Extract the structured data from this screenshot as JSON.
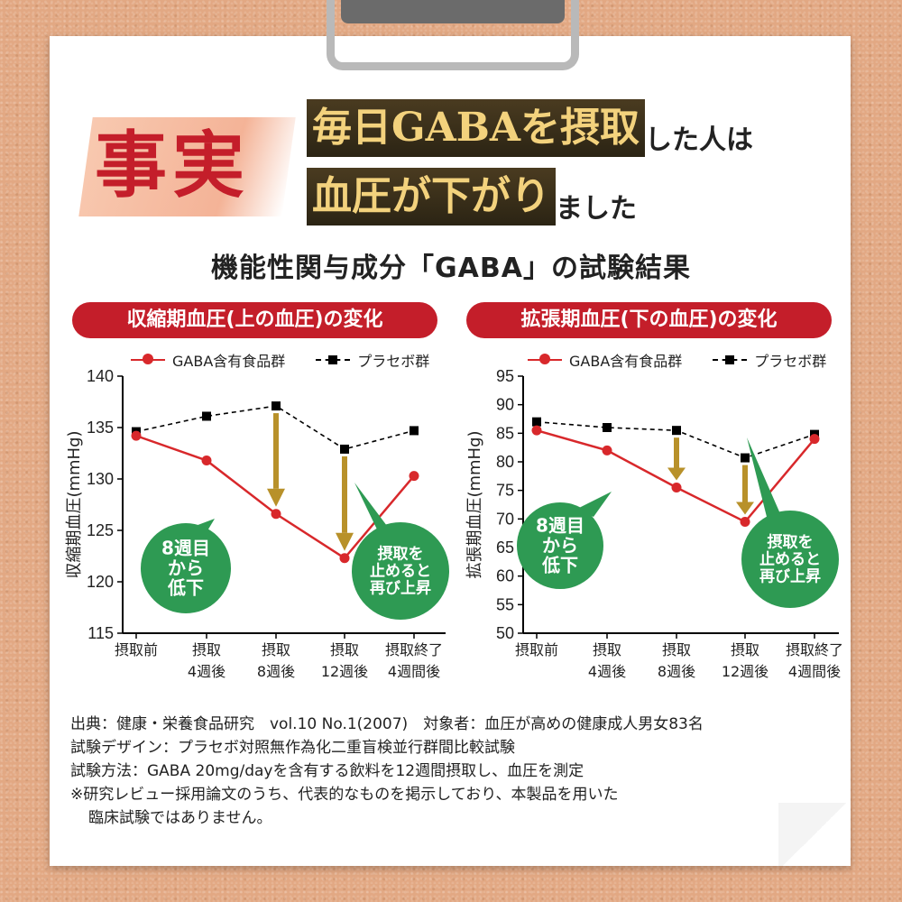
{
  "header": {
    "fact": "事実",
    "line1_box": "毎日GABAを摂取",
    "line1_rest": "した人は",
    "line2_box": "血圧が下がり",
    "line2_rest": "ました"
  },
  "subtitle": "機能性関与成分「GABA」の試験結果",
  "panels": {
    "left_title": "収縮期血圧(上の血圧)の変化",
    "right_title": "拡張期血圧(下の血圧)の変化"
  },
  "legend": {
    "gaba": "GABA含有食品群",
    "placebo": "プラセボ群"
  },
  "colors": {
    "red": "#d8282b",
    "green": "#2e9a53",
    "gold": "#b8912a",
    "accent": "#c41e2a"
  },
  "chart_data": [
    {
      "type": "line",
      "title": "収縮期血圧(上の血圧)の変化",
      "ylabel": "収縮期血圧(mmHg)",
      "categories": [
        "摂取前",
        "摂取\n4週後",
        "摂取\n8週後",
        "摂取\n12週後",
        "摂取終了\n4週間後"
      ],
      "ylim": [
        115,
        140
      ],
      "yticks": [
        115,
        120,
        125,
        130,
        135,
        140
      ],
      "series": [
        {
          "name": "GABA含有食品群",
          "values": [
            134.2,
            131.8,
            126.6,
            122.3,
            130.3
          ],
          "color": "#d8282b",
          "style": "solid"
        },
        {
          "name": "プラセボ群",
          "values": [
            134.6,
            136.1,
            137.1,
            132.9,
            134.7
          ],
          "color": "#000000",
          "style": "dashed"
        }
      ],
      "annotations": [
        {
          "text": "8週目\nから\n低下",
          "type": "green-bubble"
        },
        {
          "text": "摂取を\n止めると\n再び上昇",
          "type": "green-bubble"
        }
      ]
    },
    {
      "type": "line",
      "title": "拡張期血圧(下の血圧)の変化",
      "ylabel": "拡張期血圧(mmHg)",
      "categories": [
        "摂取前",
        "摂取\n4週後",
        "摂取\n8週後",
        "摂取\n12週後",
        "摂取終了\n4週間後"
      ],
      "ylim": [
        50,
        95
      ],
      "yticks": [
        50,
        55,
        60,
        65,
        70,
        75,
        80,
        85,
        90,
        95
      ],
      "series": [
        {
          "name": "GABA含有食品群",
          "values": [
            85.5,
            82.0,
            75.5,
            69.5,
            84.0
          ],
          "color": "#d8282b",
          "style": "solid"
        },
        {
          "name": "プラセボ群",
          "values": [
            87.0,
            86.0,
            85.5,
            80.7,
            84.8
          ],
          "color": "#000000",
          "style": "dashed"
        }
      ],
      "annotations": [
        {
          "text": "8週目\nから\n低下",
          "type": "green-bubble"
        },
        {
          "text": "摂取を\n止めると\n再び上昇",
          "type": "green-bubble"
        }
      ]
    }
  ],
  "notes": [
    "出典：健康・栄養食品研究　vol.10 No.1(2007)　対象者：血圧が高めの健康成人男女83名",
    "試験デザイン：プラセボ対照無作為化二重盲検並行群間比較試験",
    "試験方法：GABA 20mg/dayを含有する飲料を12週間摂取し、血圧を測定",
    "※研究レビュー採用論文のうち、代表的なものを掲示しており、本製品を用いた",
    "臨床試験ではありません。"
  ]
}
